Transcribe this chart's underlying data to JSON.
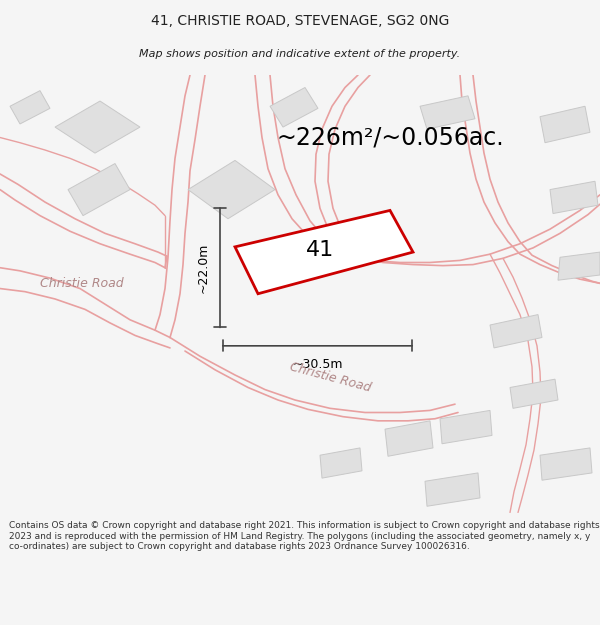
{
  "title_line1": "41, CHRISTIE ROAD, STEVENAGE, SG2 0NG",
  "title_line2": "Map shows position and indicative extent of the property.",
  "area_text": "~226m²/~0.056ac.",
  "label_41": "41",
  "dim_height": "~22.0m",
  "dim_width": "~30.5m",
  "road_label_left": "Christie Road",
  "road_label_bottom": "Christie Road",
  "footer_text": "Contains OS data © Crown copyright and database right 2021. This information is subject to Crown copyright and database rights 2023 and is reproduced with the permission of HM Land Registry. The polygons (including the associated geometry, namely x, y co-ordinates) are subject to Crown copyright and database rights 2023 Ordnance Survey 100026316.",
  "bg_color": "#f5f5f5",
  "map_bg": "#ffffff",
  "road_line_color": "#e8a0a0",
  "building_fill": "#e0e0e0",
  "building_edge": "#c8c8c8",
  "highlight_color": "#cc0000",
  "road_text_color": "#b08888",
  "title_color": "#222222",
  "footer_color": "#333333",
  "dim_line_color": "#444444"
}
